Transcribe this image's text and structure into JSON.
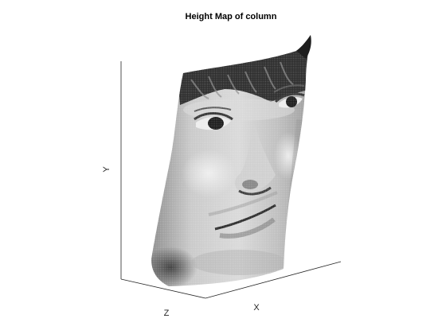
{
  "chart_data": {
    "type": "surface",
    "title": "Height Map of column",
    "xlabel": "X",
    "ylabel": "Y",
    "zlabel": "Z",
    "colormap": "gray",
    "subject": "face",
    "grid": false,
    "axes_box": "open 3-D box with three back/left/bottom edges"
  }
}
